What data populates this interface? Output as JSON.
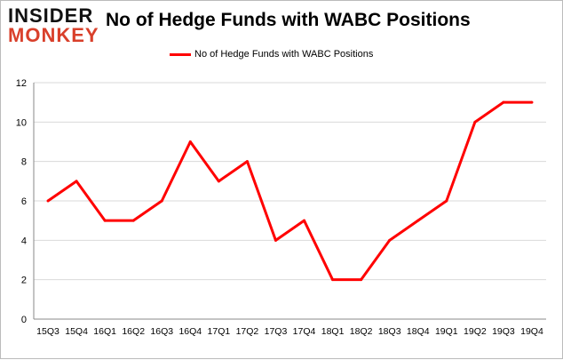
{
  "logo": {
    "line1": "INSIDER",
    "line2": "MONKEY"
  },
  "chart_data": {
    "type": "line",
    "title": "No of Hedge Funds with WABC Positions",
    "xlabel": "",
    "ylabel": "",
    "categories": [
      "15Q3",
      "15Q4",
      "16Q1",
      "16Q2",
      "16Q3",
      "16Q4",
      "17Q1",
      "17Q2",
      "17Q3",
      "17Q4",
      "18Q1",
      "18Q2",
      "18Q3",
      "18Q4",
      "19Q1",
      "19Q2",
      "19Q3",
      "19Q4"
    ],
    "series": [
      {
        "name": "No of Hedge Funds with WABC Positions",
        "values": [
          6,
          7,
          5,
          5,
          6,
          9,
          7,
          8,
          4,
          5,
          2,
          2,
          4,
          5,
          6,
          10,
          11,
          11
        ],
        "color": "#ff0000"
      }
    ],
    "ylim": [
      0,
      12
    ],
    "yticks": [
      0,
      2,
      4,
      6,
      8,
      10,
      12
    ],
    "grid": true,
    "legend": "top-center"
  }
}
